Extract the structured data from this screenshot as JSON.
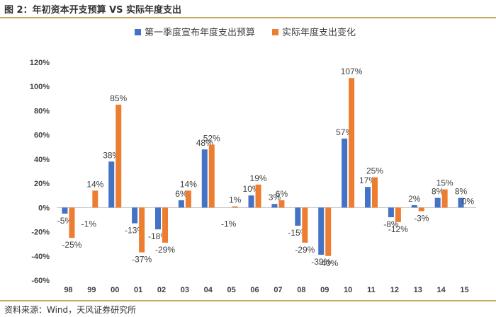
{
  "figure": {
    "title": "图 2：年初资本开支预算 VS 实际年度支出",
    "source": "资料来源：Wind，天风证券研究所"
  },
  "colors": {
    "series1": "#4472c4",
    "series2": "#ed7d31",
    "text": "#404040",
    "gridline": "#d9d9d9"
  },
  "chart_data": {
    "type": "bar",
    "title": "",
    "xlabel": "",
    "ylabel": "",
    "ylim": [
      -60,
      120
    ],
    "yticks": [
      "-60%",
      "-40%",
      "-20%",
      "0%",
      "20%",
      "40%",
      "60%",
      "80%",
      "100%",
      "120%"
    ],
    "ytick_values": [
      -60,
      -40,
      -20,
      0,
      20,
      40,
      60,
      80,
      100,
      120
    ],
    "categories": [
      "98",
      "99",
      "00",
      "01",
      "02",
      "03",
      "04",
      "05",
      "06",
      "07",
      "08",
      "09",
      "10",
      "11",
      "12",
      "13",
      "14",
      "15"
    ],
    "legend_position": "top",
    "grid": false,
    "series": [
      {
        "name": "第一季度宣布年度支出预算",
        "values": [
          -5,
          null,
          38,
          -13,
          -18,
          6,
          48,
          null,
          10,
          3,
          -15,
          -39,
          57,
          17,
          -8,
          2,
          8,
          8
        ],
        "labels": [
          "-5%",
          "",
          "38%",
          "-13%",
          "-18%",
          "6%",
          "48%",
          "",
          "10%",
          "3%",
          "-15%",
          "-39%",
          "57%",
          "17%",
          "-8%",
          "2%",
          "8%",
          "8%"
        ]
      },
      {
        "name": "实际年度支出变化",
        "values": [
          -25,
          14,
          85,
          -37,
          -29,
          14,
          52,
          1,
          19,
          6,
          -29,
          -40,
          107,
          25,
          -12,
          -3,
          15,
          0
        ],
        "labels": [
          "-25%",
          "14%",
          "85%",
          "-37%",
          "-29%",
          "14%",
          "52%",
          "1%",
          "19%",
          "6%",
          "-29%",
          "-40%",
          "107%",
          "25%",
          "-12%",
          "-3%",
          "15%",
          "0%"
        ]
      }
    ],
    "extra_labels": [
      {
        "category": "99",
        "text": "-1%",
        "anchor": "below-zero"
      },
      {
        "category": "05",
        "text": "-1%",
        "anchor": "below-zero"
      }
    ]
  }
}
